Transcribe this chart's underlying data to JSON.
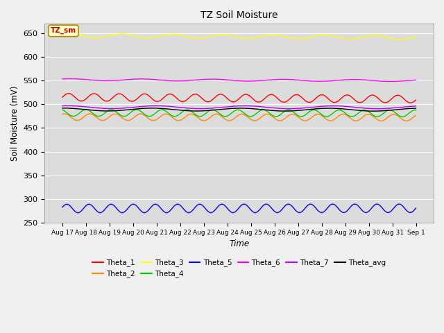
{
  "title": "TZ Soil Moisture",
  "xlabel": "Time",
  "ylabel": "Soil Moisture (mV)",
  "ylim": [
    250,
    670
  ],
  "yticks": [
    250,
    300,
    350,
    400,
    450,
    500,
    550,
    600,
    650
  ],
  "fig_bg": "#f0f0f0",
  "plot_bg": "#dcdcdc",
  "legend_label": "TZ_sm",
  "series": [
    {
      "name": "Theta_1",
      "color": "#ff0000",
      "base": 515,
      "amp": 8,
      "trend": -0.01,
      "freq": 14.0,
      "phase": 0.0
    },
    {
      "name": "Theta_2",
      "color": "#ff8800",
      "base": 473,
      "amp": 7,
      "trend": -0.003,
      "freq": 14.0,
      "phase": 1.0
    },
    {
      "name": "Theta_3",
      "color": "#ffff00",
      "base": 645,
      "amp": 4,
      "trend": -0.01,
      "freq": 7.0,
      "phase": 0.5
    },
    {
      "name": "Theta_4",
      "color": "#00cc00",
      "base": 482,
      "amp": 7,
      "trend": -0.003,
      "freq": 14.0,
      "phase": 2.0
    },
    {
      "name": "Theta_5",
      "color": "#0000ff",
      "base": 280,
      "amp": 9,
      "trend": 0.001,
      "freq": 16.0,
      "phase": 0.3
    },
    {
      "name": "Theta_6",
      "color": "#ff00ff",
      "base": 552,
      "amp": 2,
      "trend": -0.005,
      "freq": 5.0,
      "phase": 0.8
    },
    {
      "name": "Theta_7",
      "color": "#bb00ff",
      "base": 494,
      "amp": 3,
      "trend": -0.001,
      "freq": 4.0,
      "phase": 1.2
    },
    {
      "name": "Theta_avg",
      "color": "#000000",
      "base": 489,
      "amp": 3,
      "trend": -0.001,
      "freq": 4.0,
      "phase": 1.5
    }
  ],
  "x_labels": [
    "Aug 17",
    "Aug 18",
    "Aug 19",
    "Aug 20",
    "Aug 21",
    "Aug 22",
    "Aug 23",
    "Aug 24",
    "Aug 25",
    "Aug 26",
    "Aug 27",
    "Aug 28",
    "Aug 29",
    "Aug 30",
    "Aug 31",
    "Sep 1"
  ],
  "n_points": 400
}
